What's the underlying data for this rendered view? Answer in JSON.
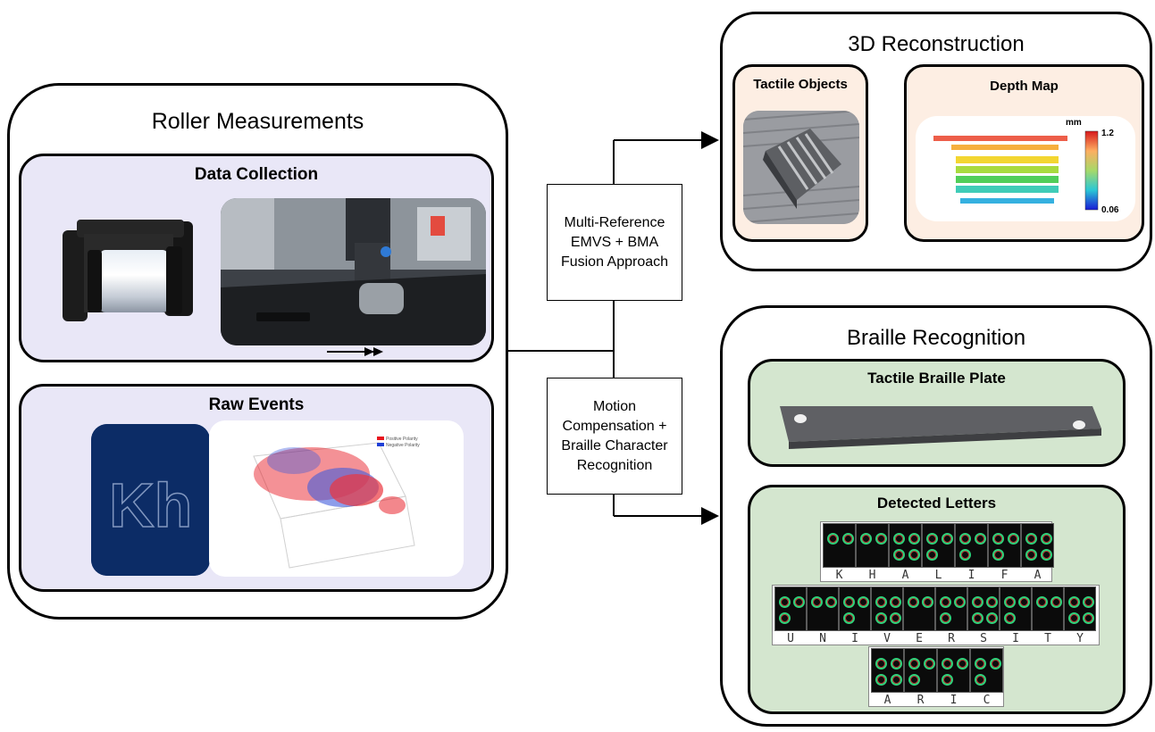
{
  "roller": {
    "title": "Roller Measurements",
    "data_collection": "Data Collection",
    "raw_events": "Raw Events",
    "plot_legend": [
      "Positive Polarity",
      "Negative Polarity"
    ]
  },
  "method_boxes": {
    "top": "Multi-Reference\nEMVS + BMA\nFusion Approach",
    "bottom": "Motion\nCompensation +\nBraille Character\nRecognition"
  },
  "reconstruction": {
    "title": "3D Reconstruction",
    "tactile_objects": "Tactile Objects",
    "depth_map": "Depth Map",
    "colorbar_unit": "mm",
    "colorbar_max": "1.2",
    "colorbar_min": "0.06"
  },
  "braille": {
    "title": "Braille Recognition",
    "plate": "Tactile Braille Plate",
    "detected": "Detected Letters",
    "words": [
      [
        "K",
        "H",
        "A",
        "L",
        "I",
        "F",
        "A"
      ],
      [
        "U",
        "N",
        "I",
        "V",
        "E",
        "R",
        "S",
        "I",
        "T",
        "Y"
      ],
      [
        "A",
        "R",
        "I",
        "C"
      ]
    ]
  },
  "colors": {
    "lavender": "#e9e7f7",
    "peach": "#fdeee3",
    "green": "#d4e6cf",
    "positive_polarity": "#e8141e",
    "negative_polarity": "#1f3fd6"
  }
}
